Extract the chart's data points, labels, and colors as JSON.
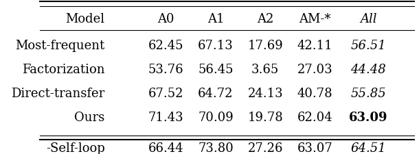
{
  "columns": [
    "Model",
    "A0",
    "A1",
    "A2",
    "AM-*",
    "All"
  ],
  "rows": [
    [
      "Most-frequent",
      "62.45",
      "67.13",
      "17.69",
      "42.11",
      "56.51"
    ],
    [
      "Factorization",
      "53.76",
      "56.45",
      "3.65",
      "27.03",
      "44.48"
    ],
    [
      "Direct-transfer",
      "67.52",
      "64.72",
      "24.13",
      "40.78",
      "55.85"
    ],
    [
      "Ours",
      "71.43",
      "70.09",
      "19.78",
      "62.04",
      "63.09"
    ]
  ],
  "bottom_row": [
    "-Self-loop",
    "66.44",
    "73.80",
    "27.26",
    "63.07",
    "64.51"
  ],
  "bold_cell": [
    3,
    5
  ],
  "background_color": "#ffffff",
  "text_color": "#000000",
  "fontsize": 13
}
